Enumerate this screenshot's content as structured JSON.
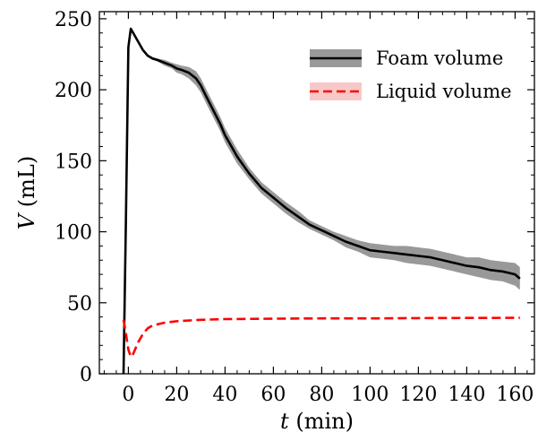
{
  "chart_data": {
    "type": "line",
    "xlabel_var": "t",
    "xlabel_unit": "(min)",
    "ylabel_var": "V",
    "ylabel_unit": "(mL)",
    "xlim": [
      -12,
      168
    ],
    "ylim": [
      0,
      255
    ],
    "xticks": [
      0,
      20,
      40,
      60,
      80,
      100,
      120,
      140,
      160
    ],
    "yticks": [
      0,
      50,
      100,
      150,
      200,
      250
    ],
    "legend_position": "top-right",
    "series": [
      {
        "name": "Foam volume",
        "color": "#000000",
        "band_color": "#999999",
        "style": "solid",
        "x": [
          -2,
          -1,
          0,
          1,
          2,
          4,
          6,
          8,
          10,
          12,
          15,
          18,
          20,
          22,
          25,
          28,
          30,
          32,
          35,
          38,
          40,
          45,
          50,
          55,
          60,
          65,
          70,
          75,
          80,
          85,
          90,
          95,
          100,
          105,
          110,
          115,
          120,
          125,
          130,
          135,
          140,
          145,
          150,
          155,
          160,
          162
        ],
        "y": [
          0,
          110,
          230,
          243,
          240,
          234,
          228,
          224,
          222,
          221,
          219,
          217,
          215,
          214,
          212,
          208,
          203,
          196,
          186,
          176,
          168,
          153,
          141,
          131,
          124,
          117,
          111,
          105,
          101,
          97,
          93,
          90,
          87,
          86,
          85,
          84,
          83,
          82,
          80,
          78,
          76,
          75,
          73,
          72,
          70,
          67
        ],
        "band_halfwidth": [
          0,
          0,
          0,
          0,
          0,
          0,
          0,
          1,
          1,
          1,
          2,
          2,
          3,
          3,
          4,
          5,
          5,
          5,
          5,
          5,
          5,
          5,
          4,
          4,
          4,
          4,
          4,
          3,
          3,
          3,
          4,
          4,
          5,
          5,
          5,
          6,
          6,
          6,
          6,
          6,
          6,
          7,
          7,
          7,
          8,
          8
        ]
      },
      {
        "name": "Liquid volume",
        "color": "#ff0000",
        "band_color": "#f8c8c8",
        "style": "dashed",
        "x": [
          -2,
          -1,
          0,
          1,
          2,
          4,
          6,
          8,
          10,
          15,
          20,
          30,
          40,
          60,
          80,
          100,
          120,
          140,
          162
        ],
        "y": [
          38,
          28,
          17,
          12,
          14,
          22,
          28,
          32,
          34,
          36,
          37,
          38,
          38.5,
          38.8,
          39,
          39,
          39.2,
          39.3,
          39.4
        ],
        "band_halfwidth": [
          0,
          0,
          0,
          0,
          0,
          0,
          0,
          0,
          0,
          0,
          0,
          0,
          0,
          0,
          0,
          0,
          0,
          0,
          0
        ]
      }
    ]
  }
}
